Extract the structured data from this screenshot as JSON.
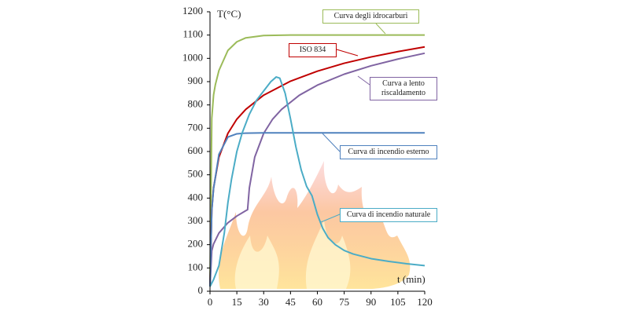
{
  "chart_data": {
    "type": "line",
    "y_label": "T(°C)",
    "x_label": "t (min)",
    "xlim": [
      0,
      120
    ],
    "xticks": [
      0,
      15,
      30,
      45,
      60,
      75,
      90,
      105,
      120
    ],
    "ylim": [
      0,
      1200
    ],
    "yticks": [
      0,
      100,
      200,
      300,
      400,
      500,
      600,
      700,
      800,
      900,
      1000,
      1100,
      1200
    ],
    "grid": false,
    "series": [
      {
        "name": "Curva degli idrocarburi",
        "color": "#9bbb59",
        "x": [
          0,
          1,
          2,
          3,
          5,
          10,
          15,
          20,
          30,
          45,
          60,
          90,
          120
        ],
        "values": [
          20,
          743,
          843,
          887,
          948,
          1034,
          1071,
          1088,
          1098,
          1100,
          1100,
          1100,
          1100
        ]
      },
      {
        "name": "ISO 834",
        "color": "#c00000",
        "x": [
          0,
          1,
          2,
          5,
          10,
          15,
          20,
          30,
          45,
          60,
          75,
          90,
          105,
          120
        ],
        "values": [
          20,
          349,
          444,
          576,
          678,
          739,
          781,
          842,
          902,
          945,
          979,
          1006,
          1029,
          1049
        ]
      },
      {
        "name": "Curva a lento riscaldamento",
        "color": "#8064a2",
        "x": [
          0,
          1,
          2,
          5,
          10,
          15,
          20,
          21,
          22,
          25,
          30,
          35,
          40,
          50,
          60,
          75,
          90,
          105,
          120
        ],
        "values": [
          20,
          174,
          203,
          250,
          294,
          323,
          346,
          350,
          444,
          576,
          678,
          739,
          781,
          842,
          885,
          932,
          968,
          997,
          1022
        ]
      },
      {
        "name": "Curva di incendio esterno",
        "color": "#4f81bd",
        "x": [
          0,
          1,
          2,
          5,
          10,
          15,
          20,
          30,
          120
        ],
        "values": [
          20,
          346,
          441,
          588,
          662,
          676,
          679,
          680,
          680
        ]
      },
      {
        "name": "Curva di incendio naturale",
        "color": "#4bacc6",
        "x": [
          0,
          2,
          5,
          8,
          10,
          12,
          15,
          18,
          22,
          26,
          30,
          34,
          37,
          39,
          42,
          45,
          48,
          51,
          54,
          57,
          60,
          63,
          66,
          70,
          75,
          80,
          90,
          100,
          110,
          120
        ],
        "values": [
          20,
          50,
          110,
          250,
          380,
          480,
          600,
          680,
          760,
          820,
          860,
          900,
          920,
          915,
          850,
          740,
          620,
          520,
          450,
          410,
          330,
          270,
          230,
          200,
          175,
          160,
          140,
          128,
          118,
          110
        ]
      }
    ]
  }
}
